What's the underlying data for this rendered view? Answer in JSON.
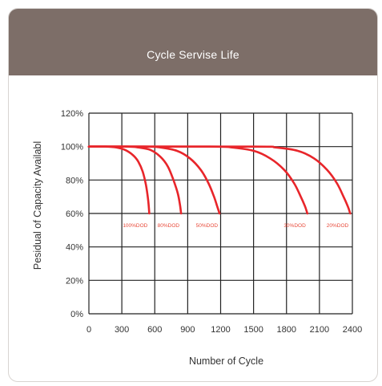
{
  "header": {
    "title": "Cycle Servise Life"
  },
  "colors": {
    "header_bg": "#7d6e68",
    "curve": "#e8252a",
    "grid": "#222222"
  },
  "chart_data": {
    "type": "line",
    "title": "Cycle Servise Life",
    "xlabel": "Number of Cycle",
    "ylabel": "Pesidual of Capacity Availabl",
    "xlim": [
      0,
      2400
    ],
    "ylim": [
      0,
      120
    ],
    "x_ticks": [
      "0",
      "300",
      "600",
      "900",
      "1200",
      "1500",
      "1800",
      "2100",
      "2400"
    ],
    "y_ticks": [
      "0%",
      "20%",
      "40%",
      "60%",
      "80%",
      "100%",
      "120%"
    ],
    "grid": true,
    "series": [
      {
        "name": "100%DOD",
        "x": [
          0,
          150,
          250,
          330,
          400,
          450,
          490,
          520,
          540,
          550
        ],
        "y": [
          100,
          100,
          99.5,
          98,
          95,
          91,
          85,
          77,
          68,
          60
        ]
      },
      {
        "name": "80%DOD",
        "x": [
          0,
          350,
          450,
          560,
          650,
          720,
          770,
          810,
          830,
          840
        ],
        "y": [
          100,
          100,
          99.5,
          98,
          94,
          88,
          80,
          72,
          65,
          60
        ]
      },
      {
        "name": "50%DOD",
        "x": [
          0,
          500,
          650,
          800,
          920,
          1020,
          1090,
          1140,
          1170,
          1190
        ],
        "y": [
          100,
          100,
          99.5,
          97.5,
          93,
          86,
          78,
          70,
          64,
          60
        ]
      },
      {
        "name": "30%DOD",
        "x": [
          0,
          1100,
          1300,
          1500,
          1650,
          1780,
          1870,
          1930,
          1970,
          1990
        ],
        "y": [
          100,
          100,
          99.5,
          97.5,
          93,
          86,
          78,
          70,
          64,
          60
        ]
      },
      {
        "name": "20%DOD",
        "x": [
          0,
          1500,
          1700,
          1900,
          2050,
          2170,
          2260,
          2320,
          2360,
          2380
        ],
        "y": [
          100,
          100,
          99.5,
          97.5,
          93,
          86,
          78,
          70,
          64,
          60
        ]
      }
    ]
  }
}
